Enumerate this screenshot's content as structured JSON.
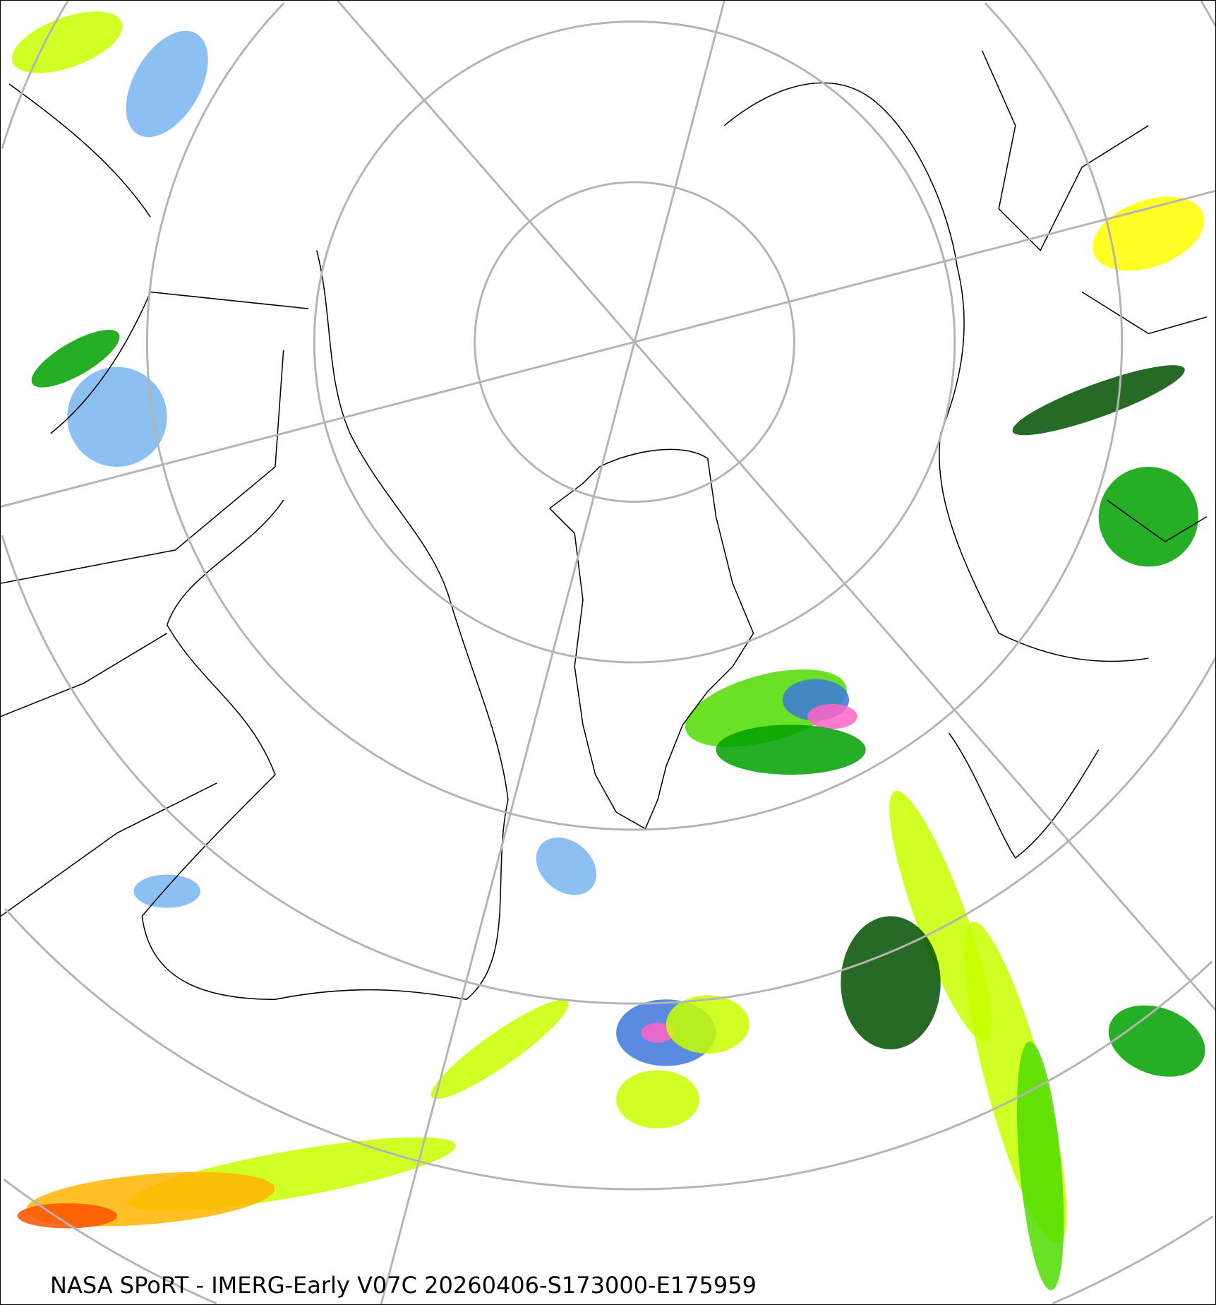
{
  "caption": "NASA SPoRT - IMERG-Early V07C 20260406-S173000-E175959",
  "map": {
    "projection": "polar-stereographic-north",
    "graticule_color": "#b4b4b4",
    "coastline_color": "#000000",
    "precip_colors": [
      "#c8e1ff",
      "#78b4f0",
      "#3c78dc",
      "#005000",
      "#00a000",
      "#50dc00",
      "#c8ff00",
      "#ffff00",
      "#ffb400",
      "#ff5000",
      "#ff64c8"
    ]
  }
}
